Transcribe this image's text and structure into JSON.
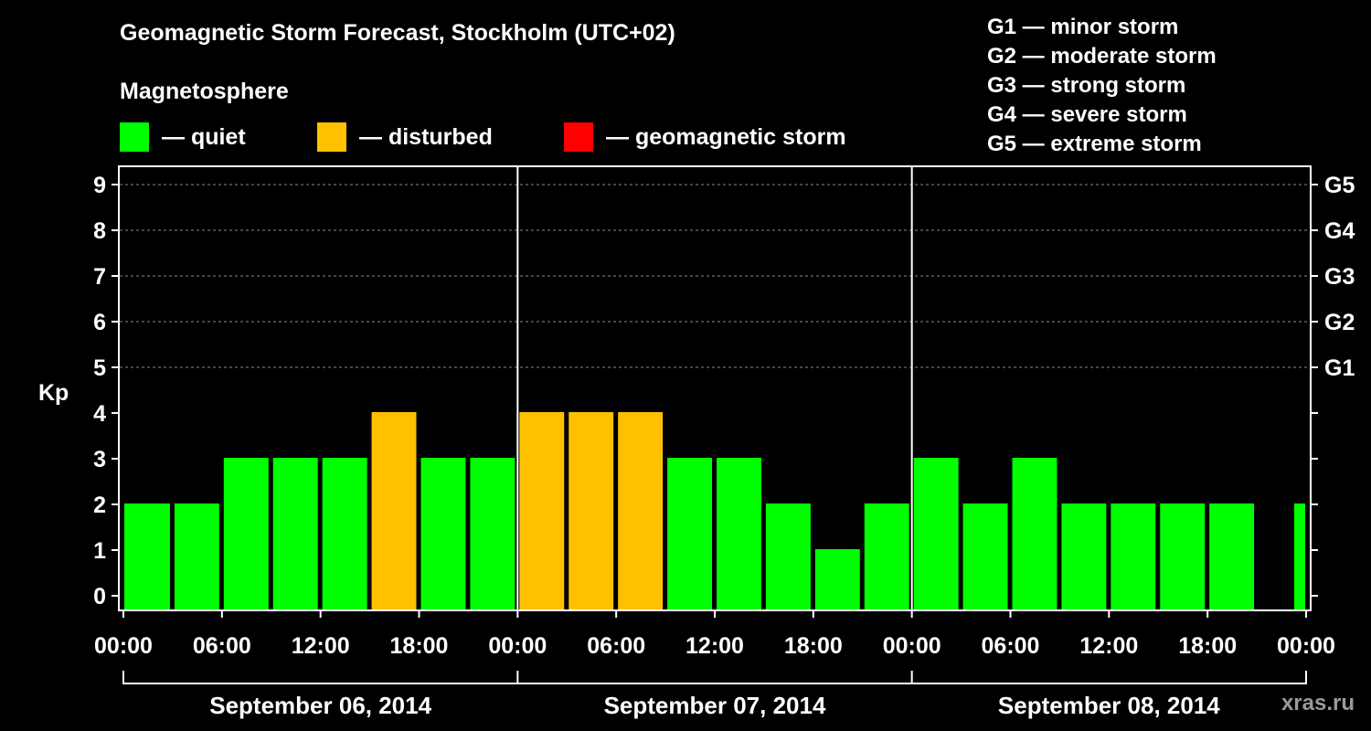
{
  "chart_data": {
    "type": "bar",
    "title": "Geomagnetic Storm Forecast, Stockholm (UTC+02)",
    "subtitle": "Magnetosphere",
    "ylabel": "Kp",
    "ylim": [
      0,
      9
    ],
    "yticks": [
      "0",
      "1",
      "2",
      "3",
      "4",
      "5",
      "6",
      "7",
      "8",
      "9"
    ],
    "right_labels": [
      {
        "level": 5,
        "label": "G1"
      },
      {
        "level": 6,
        "label": "G2"
      },
      {
        "level": 7,
        "label": "G3"
      },
      {
        "level": 8,
        "label": "G4"
      },
      {
        "level": 9,
        "label": "G5"
      }
    ],
    "legend": [
      {
        "label": "— quiet",
        "color": "#00ff00"
      },
      {
        "label": "— disturbed",
        "color": "#ffc000"
      },
      {
        "label": "— geomagnetic storm",
        "color": "#ff0000"
      }
    ],
    "storm_scale": [
      "G1 — minor storm",
      "G2 — moderate storm",
      "G3 — strong storm",
      "G4 — severe storm",
      "G5 — extreme storm"
    ],
    "xticks": [
      "00:00",
      "06:00",
      "12:00",
      "18:00",
      "00:00",
      "06:00",
      "12:00",
      "18:00",
      "00:00",
      "06:00",
      "12:00",
      "18:00",
      "00:00"
    ],
    "days": [
      "September 06, 2014",
      "September 07, 2014",
      "September 08, 2014"
    ],
    "x_hours_range": [
      0,
      72
    ],
    "bars": [
      {
        "start": 0,
        "end": 3,
        "kp": 2,
        "color": "#00ff00"
      },
      {
        "start": 3,
        "end": 6,
        "kp": 2,
        "color": "#00ff00"
      },
      {
        "start": 6,
        "end": 9,
        "kp": 3,
        "color": "#00ff00"
      },
      {
        "start": 9,
        "end": 12,
        "kp": 3,
        "color": "#00ff00"
      },
      {
        "start": 12,
        "end": 15,
        "kp": 3,
        "color": "#00ff00"
      },
      {
        "start": 15,
        "end": 18,
        "kp": 4,
        "color": "#ffc000"
      },
      {
        "start": 18,
        "end": 21,
        "kp": 3,
        "color": "#00ff00"
      },
      {
        "start": 21,
        "end": 24,
        "kp": 3,
        "color": "#00ff00"
      },
      {
        "start": 24,
        "end": 27,
        "kp": 4,
        "color": "#ffc000"
      },
      {
        "start": 27,
        "end": 30,
        "kp": 4,
        "color": "#ffc000"
      },
      {
        "start": 30,
        "end": 33,
        "kp": 4,
        "color": "#ffc000"
      },
      {
        "start": 33,
        "end": 36,
        "kp": 3,
        "color": "#00ff00"
      },
      {
        "start": 36,
        "end": 39,
        "kp": 3,
        "color": "#00ff00"
      },
      {
        "start": 39,
        "end": 42,
        "kp": 2,
        "color": "#00ff00"
      },
      {
        "start": 42,
        "end": 45,
        "kp": 1,
        "color": "#00ff00"
      },
      {
        "start": 45,
        "end": 48,
        "kp": 2,
        "color": "#00ff00"
      },
      {
        "start": 48,
        "end": 51,
        "kp": 3,
        "color": "#00ff00"
      },
      {
        "start": 51,
        "end": 54,
        "kp": 2,
        "color": "#00ff00"
      },
      {
        "start": 54,
        "end": 57,
        "kp": 3,
        "color": "#00ff00"
      },
      {
        "start": 57,
        "end": 60,
        "kp": 2,
        "color": "#00ff00"
      },
      {
        "start": 60,
        "end": 63,
        "kp": 2,
        "color": "#00ff00"
      },
      {
        "start": 63,
        "end": 66,
        "kp": 2,
        "color": "#00ff00"
      },
      {
        "start": 66,
        "end": 69,
        "kp": 2,
        "color": "#00ff00"
      },
      {
        "start": 69,
        "end": 72,
        "kp": 2,
        "color": "#00ff00"
      }
    ],
    "watermark": "xras.ru"
  }
}
